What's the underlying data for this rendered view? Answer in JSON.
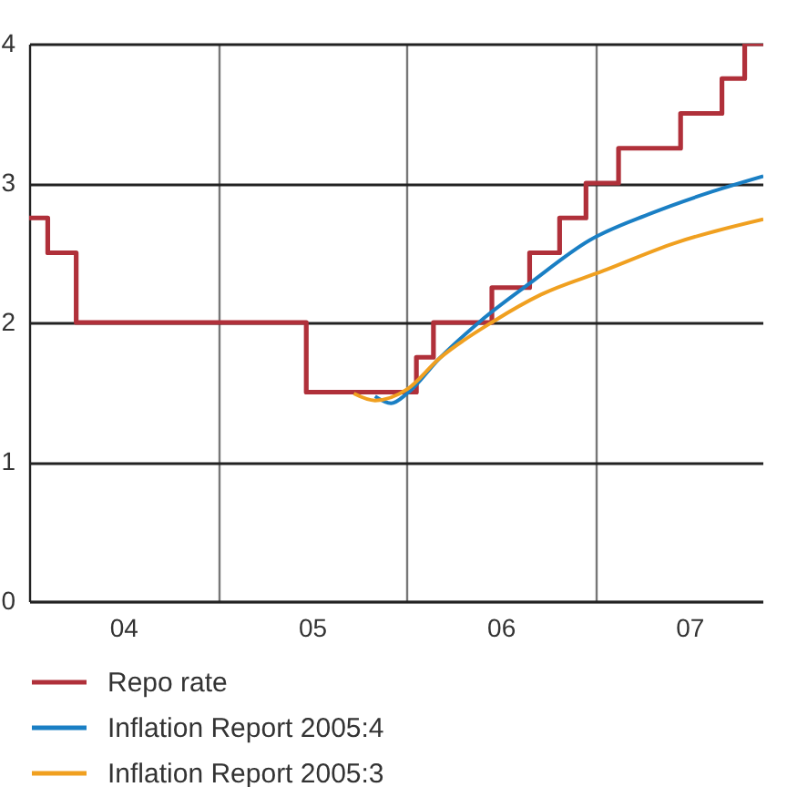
{
  "chart_data": {
    "type": "line",
    "xlim": [
      "2004-01-01",
      "2007-11-21"
    ],
    "xticks": [
      {
        "value": "2004-07",
        "label": "04"
      },
      {
        "value": "2005",
        "label": null
      },
      {
        "value": "2005-07",
        "label": "05"
      },
      {
        "value": "2006",
        "label": null
      },
      {
        "value": "2006-07",
        "label": "06"
      },
      {
        "value": "2007",
        "label": null
      },
      {
        "value": "2007-07",
        "label": "07"
      }
    ],
    "ylim": [
      0,
      4
    ],
    "yticks": [
      0,
      1,
      2,
      3,
      4
    ],
    "grid": true,
    "legend": "bottom",
    "series": [
      {
        "name": "Repo rate",
        "type": "step",
        "color": "#b0303a",
        "x": [
          "2004-01-01",
          "2004-02-06",
          "2004-04-01",
          "2005-06-20",
          "2006-01-19",
          "2006-02-21",
          "2006-06-14",
          "2006-08-26",
          "2006-10-23",
          "2006-12-13",
          "2007-02-14",
          "2007-06-14",
          "2007-09-02",
          "2007-10-16",
          "2007-11-21"
        ],
        "values": [
          2.75,
          2.5,
          2.0,
          1.5,
          1.75,
          2.0,
          2.25,
          2.5,
          2.75,
          3.0,
          3.25,
          3.5,
          3.75,
          4.0,
          4.0
        ]
      },
      {
        "name": "Inflation Report 2005:4",
        "type": "line",
        "color": "#1a7fc4",
        "x": [
          "2005-10-31",
          "2005-12-01",
          "2006-01-01",
          "2006-03-04",
          "2006-05-23",
          "2006-08-26",
          "2006-12-20",
          "2007-04-16",
          "2007-08-15",
          "2007-11-21"
        ],
        "values": [
          1.47,
          1.42,
          1.49,
          1.74,
          2.01,
          2.28,
          2.59,
          2.78,
          2.94,
          3.05
        ]
      },
      {
        "name": "Inflation Report 2005:3",
        "type": "line",
        "color": "#f0a020",
        "x": [
          "2005-09-20",
          "2005-10-31",
          "2006-01-01",
          "2006-03-04",
          "2006-06-18",
          "2006-09-17",
          "2007-01-15",
          "2007-06-03",
          "2007-11-21"
        ],
        "values": [
          1.49,
          1.44,
          1.52,
          1.74,
          2.01,
          2.2,
          2.37,
          2.57,
          2.74
        ]
      }
    ]
  }
}
